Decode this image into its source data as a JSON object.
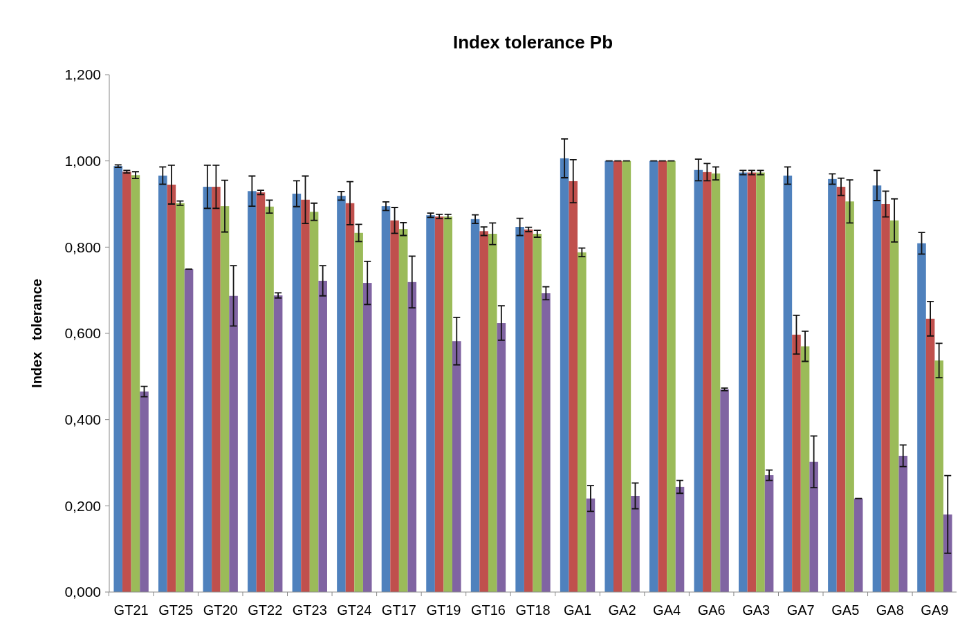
{
  "chart_data": {
    "type": "bar",
    "title": "Index tolerance Pb",
    "ylabel": "Index   tolerance",
    "categories": [
      "GT21",
      "GT25",
      "GT20",
      "GT22",
      "GT23",
      "GT24",
      "GT17",
      "GT19",
      "GT16",
      "GT18",
      "GA1",
      "GA2",
      "GA4",
      "GA6",
      "GA3",
      "GA7",
      "GA5",
      "GA8",
      "GA9"
    ],
    "series": [
      {
        "color": "#4f81bd",
        "values": [
          0.988,
          0.966,
          0.94,
          0.93,
          0.924,
          0.919,
          0.895,
          0.874,
          0.865,
          0.847,
          1.006,
          1.0,
          1.0,
          0.979,
          0.973,
          0.966,
          0.958,
          0.943,
          0.809
        ],
        "errors": [
          0.003,
          0.02,
          0.05,
          0.035,
          0.03,
          0.01,
          0.01,
          0.005,
          0.01,
          0.02,
          0.045,
          0,
          0,
          0.025,
          0.005,
          0.02,
          0.012,
          0.035,
          0.025
        ]
      },
      {
        "color": "#c0504d",
        "values": [
          0.975,
          0.945,
          0.94,
          0.927,
          0.91,
          0.902,
          0.862,
          0.871,
          0.837,
          0.841,
          0.953,
          1.0,
          1.0,
          0.974,
          0.973,
          0.597,
          0.94,
          0.9,
          0.634
        ],
        "errors": [
          0.003,
          0.045,
          0.05,
          0.005,
          0.055,
          0.05,
          0.03,
          0.005,
          0.01,
          0.005,
          0.05,
          0,
          0,
          0.02,
          0.005,
          0.045,
          0.02,
          0.03,
          0.04
        ]
      },
      {
        "color": "#9bbb59",
        "values": [
          0.967,
          0.902,
          0.895,
          0.894,
          0.882,
          0.833,
          0.842,
          0.871,
          0.831,
          0.831,
          0.788,
          1.0,
          1.0,
          0.971,
          0.973,
          0.57,
          0.906,
          0.862,
          0.537
        ],
        "errors": [
          0.008,
          0.005,
          0.06,
          0.015,
          0.02,
          0.02,
          0.015,
          0.005,
          0.025,
          0.008,
          0.01,
          0,
          0,
          0.015,
          0.005,
          0.035,
          0.05,
          0.05,
          0.04
        ]
      },
      {
        "color": "#8064a2",
        "values": [
          0.465,
          0.749,
          0.687,
          0.688,
          0.722,
          0.717,
          0.719,
          0.582,
          0.624,
          0.693,
          0.217,
          0.223,
          0.244,
          0.47,
          0.271,
          0.302,
          0.217,
          0.316,
          0.18
        ],
        "errors": [
          0.012,
          0,
          0.07,
          0.006,
          0.035,
          0.05,
          0.06,
          0.055,
          0.04,
          0.015,
          0.03,
          0.03,
          0.015,
          0.003,
          0.012,
          0.06,
          0,
          0.025,
          0.09
        ]
      }
    ],
    "ylim": [
      0,
      1.2
    ],
    "yticks": [
      {
        "value": 0,
        "label": "0,000"
      },
      {
        "value": 0.2,
        "label": "0,200"
      },
      {
        "value": 0.4,
        "label": "0,400"
      },
      {
        "value": 0.6,
        "label": "0,600"
      },
      {
        "value": 0.8,
        "label": "0,800"
      },
      {
        "value": 1.0,
        "label": "1,000"
      },
      {
        "value": 1.2,
        "label": "1,200"
      }
    ],
    "grid": false
  }
}
